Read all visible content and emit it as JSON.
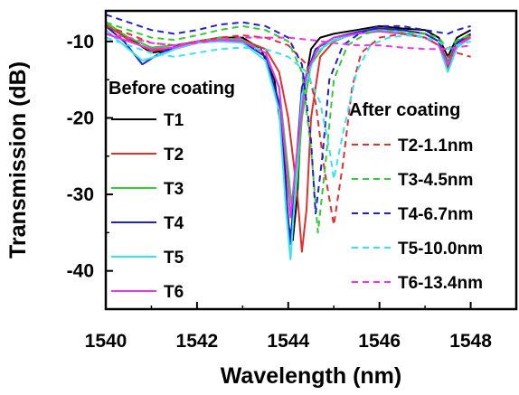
{
  "chart_data": {
    "type": "line",
    "xlabel": "Wavelength (nm)",
    "ylabel": "Transmission (dB)",
    "xlim": [
      1540,
      1549
    ],
    "ylim": [
      -45,
      -6
    ],
    "xticks": [
      1540,
      1542,
      1544,
      1546,
      1548
    ],
    "yticks": [
      -10,
      -20,
      -30,
      -40
    ],
    "legend_groups": [
      {
        "title": "Before coating",
        "placement": "left",
        "entries": [
          "T1",
          "T2",
          "T3",
          "T4",
          "T5",
          "T6"
        ]
      },
      {
        "title": "After coating",
        "placement": "right",
        "entries": [
          "T2-1.1nm",
          "T3-4.5nm",
          "T4-6.7nm",
          "T5-10.0nm",
          "T6-13.4nm"
        ]
      }
    ],
    "series": [
      {
        "name": "T1",
        "group": "before",
        "color": "#000000",
        "style": "solid",
        "x": [
          1540.0,
          1540.5,
          1541.0,
          1541.5,
          1542.0,
          1542.5,
          1543.0,
          1543.4,
          1543.7,
          1543.9,
          1544.0,
          1544.1,
          1544.2,
          1544.3,
          1544.5,
          1544.7,
          1545.0,
          1545.5,
          1546.0,
          1546.5,
          1547.0,
          1547.3,
          1547.5,
          1547.7,
          1548.0
        ],
        "y": [
          -8.0,
          -9.5,
          -11.5,
          -11.0,
          -10.0,
          -9.5,
          -9.5,
          -11.0,
          -15.0,
          -24.0,
          -34.0,
          -36.0,
          -30.0,
          -18.0,
          -11.0,
          -9.5,
          -9.0,
          -8.5,
          -8.0,
          -8.3,
          -8.5,
          -9.5,
          -12.0,
          -9.5,
          -8.5
        ]
      },
      {
        "name": "T2",
        "group": "before",
        "color": "#e03030",
        "style": "solid",
        "x": [
          1540.0,
          1540.5,
          1541.0,
          1541.5,
          1542.0,
          1542.5,
          1543.0,
          1543.5,
          1543.8,
          1544.0,
          1544.2,
          1544.3,
          1544.4,
          1544.5,
          1544.7,
          1545.0,
          1545.5,
          1546.0,
          1546.5,
          1547.0,
          1547.3,
          1547.5,
          1547.7,
          1548.0
        ],
        "y": [
          -7.8,
          -9.8,
          -11.2,
          -11.0,
          -10.2,
          -9.8,
          -9.8,
          -11.0,
          -14.0,
          -20.0,
          -30.0,
          -37.5,
          -32.0,
          -20.0,
          -12.0,
          -10.0,
          -8.8,
          -8.2,
          -8.5,
          -9.0,
          -10.0,
          -13.5,
          -10.5,
          -9.2
        ]
      },
      {
        "name": "T3",
        "group": "before",
        "color": "#33cc33",
        "style": "solid",
        "x": [
          1540.0,
          1540.5,
          1541.0,
          1541.5,
          1542.0,
          1542.5,
          1543.0,
          1543.5,
          1543.8,
          1544.0,
          1544.1,
          1544.2,
          1544.3,
          1544.5,
          1544.8,
          1545.2,
          1545.6,
          1546.0,
          1546.5,
          1547.0,
          1547.3,
          1547.5,
          1547.7,
          1548.0
        ],
        "y": [
          -7.5,
          -9.5,
          -10.8,
          -10.5,
          -10.0,
          -9.5,
          -9.8,
          -11.5,
          -16.0,
          -27.0,
          -33.0,
          -28.0,
          -20.0,
          -13.0,
          -10.5,
          -9.5,
          -8.8,
          -8.5,
          -8.8,
          -9.5,
          -10.5,
          -12.5,
          -10.0,
          -9.0
        ]
      },
      {
        "name": "T4",
        "group": "before",
        "color": "#2020cc",
        "style": "solid",
        "x": [
          1540.0,
          1540.4,
          1540.8,
          1541.2,
          1541.6,
          1542.0,
          1542.5,
          1543.0,
          1543.5,
          1543.8,
          1543.95,
          1544.05,
          1544.15,
          1544.3,
          1544.6,
          1545.0,
          1545.5,
          1546.0,
          1546.5,
          1547.0,
          1547.3,
          1547.5,
          1547.7,
          1548.0
        ],
        "y": [
          -8.0,
          -10.0,
          -13.0,
          -11.5,
          -10.5,
          -10.0,
          -9.8,
          -10.0,
          -12.0,
          -18.0,
          -30.0,
          -36.5,
          -28.0,
          -16.0,
          -11.0,
          -9.5,
          -8.8,
          -8.3,
          -8.5,
          -9.0,
          -10.0,
          -13.0,
          -10.2,
          -9.0
        ]
      },
      {
        "name": "T5",
        "group": "before",
        "color": "#33e6ee",
        "style": "solid",
        "x": [
          1540.0,
          1540.4,
          1540.8,
          1541.2,
          1541.6,
          1542.0,
          1542.5,
          1543.0,
          1543.5,
          1543.8,
          1543.95,
          1544.05,
          1544.15,
          1544.3,
          1544.6,
          1545.0,
          1545.5,
          1546.0,
          1546.5,
          1547.0,
          1547.3,
          1547.5,
          1547.7,
          1548.0
        ],
        "y": [
          -8.5,
          -10.5,
          -12.5,
          -11.8,
          -10.8,
          -10.2,
          -10.0,
          -10.2,
          -12.5,
          -19.0,
          -32.0,
          -38.5,
          -30.0,
          -17.0,
          -11.5,
          -9.8,
          -9.0,
          -8.5,
          -8.8,
          -9.5,
          -10.5,
          -14.0,
          -10.8,
          -9.5
        ]
      },
      {
        "name": "T6",
        "group": "before",
        "color": "#ee33ee",
        "style": "solid",
        "x": [
          1540.0,
          1540.5,
          1541.0,
          1541.5,
          1542.0,
          1542.5,
          1543.0,
          1543.5,
          1543.8,
          1543.95,
          1544.05,
          1544.2,
          1544.4,
          1544.7,
          1545.0,
          1545.5,
          1546.0,
          1546.5,
          1547.0,
          1547.3,
          1547.5,
          1547.7,
          1548.0
        ],
        "y": [
          -9.0,
          -10.0,
          -11.0,
          -10.8,
          -10.0,
          -9.8,
          -10.0,
          -11.5,
          -16.0,
          -26.0,
          -33.0,
          -24.0,
          -14.0,
          -10.5,
          -9.5,
          -9.0,
          -8.7,
          -9.0,
          -9.5,
          -10.5,
          -13.0,
          -10.5,
          -9.5
        ]
      },
      {
        "name": "T2-1.1nm",
        "group": "after",
        "color": "#e03030",
        "style": "dashed",
        "x": [
          1540.0,
          1540.5,
          1541.0,
          1541.5,
          1542.0,
          1542.5,
          1543.0,
          1543.5,
          1544.0,
          1544.4,
          1544.6,
          1544.8,
          1545.0,
          1545.2,
          1545.4,
          1545.6,
          1546.0,
          1546.5,
          1547.0,
          1547.3,
          1547.5,
          1547.7,
          1548.0
        ],
        "y": [
          -8.0,
          -9.0,
          -10.2,
          -10.5,
          -10.0,
          -9.5,
          -9.2,
          -9.5,
          -10.5,
          -13.0,
          -18.0,
          -27.0,
          -34.0,
          -26.0,
          -16.0,
          -11.5,
          -9.5,
          -9.0,
          -9.5,
          -10.5,
          -12.0,
          -11.5,
          -12.0
        ]
      },
      {
        "name": "T3-4.5nm",
        "group": "after",
        "color": "#33cc33",
        "style": "dashed",
        "x": [
          1540.0,
          1540.5,
          1541.0,
          1541.5,
          1542.0,
          1542.5,
          1543.0,
          1543.5,
          1544.0,
          1544.3,
          1544.5,
          1544.65,
          1544.8,
          1545.0,
          1545.3,
          1545.7,
          1546.0,
          1546.5,
          1547.0,
          1547.3,
          1547.5,
          1547.7,
          1548.0
        ],
        "y": [
          -7.5,
          -8.5,
          -9.5,
          -9.8,
          -9.2,
          -8.5,
          -8.0,
          -8.5,
          -10.0,
          -14.0,
          -24.0,
          -35.0,
          -27.0,
          -15.0,
          -10.5,
          -9.0,
          -8.5,
          -8.8,
          -9.0,
          -9.5,
          -11.0,
          -9.8,
          -9.2
        ]
      },
      {
        "name": "T4-6.7nm",
        "group": "after",
        "color": "#2020cc",
        "style": "dashed",
        "x": [
          1540.0,
          1540.5,
          1541.0,
          1541.5,
          1542.0,
          1542.5,
          1543.0,
          1543.5,
          1544.0,
          1544.3,
          1544.5,
          1544.6,
          1544.75,
          1544.9,
          1545.2,
          1545.6,
          1546.0,
          1546.5,
          1547.0,
          1547.3,
          1547.5,
          1547.7,
          1548.0
        ],
        "y": [
          -6.5,
          -7.5,
          -8.5,
          -9.0,
          -8.5,
          -7.8,
          -7.5,
          -8.0,
          -9.5,
          -13.0,
          -23.0,
          -32.5,
          -25.0,
          -15.0,
          -10.5,
          -8.8,
          -8.0,
          -8.0,
          -8.5,
          -8.8,
          -9.0,
          -8.5,
          -8.0
        ]
      },
      {
        "name": "T5-10.0nm",
        "group": "after",
        "color": "#33e6ee",
        "style": "dashed",
        "x": [
          1540.0,
          1540.5,
          1541.0,
          1541.5,
          1542.0,
          1542.5,
          1543.0,
          1543.5,
          1544.0,
          1544.4,
          1544.7,
          1544.9,
          1545.0,
          1545.2,
          1545.5,
          1545.8,
          1546.2,
          1546.6,
          1547.0,
          1547.3,
          1547.5,
          1547.7,
          1548.0
        ],
        "y": [
          -9.5,
          -10.5,
          -11.5,
          -12.0,
          -11.5,
          -11.0,
          -10.8,
          -11.0,
          -12.0,
          -14.0,
          -18.0,
          -24.0,
          -28.0,
          -22.0,
          -14.0,
          -10.5,
          -9.5,
          -9.2,
          -9.5,
          -10.0,
          -11.0,
          -10.5,
          -10.0
        ]
      },
      {
        "name": "T6-13.4nm",
        "group": "after",
        "color": "#ee33ee",
        "style": "dashed",
        "x": [
          1540.0,
          1540.5,
          1541.0,
          1541.5,
          1542.0,
          1542.5,
          1543.0,
          1543.5,
          1544.0,
          1544.5,
          1545.0,
          1545.5,
          1546.0,
          1546.5,
          1547.0,
          1547.3,
          1547.5,
          1547.7,
          1548.0
        ],
        "y": [
          -9.0,
          -9.5,
          -10.2,
          -10.5,
          -10.2,
          -9.8,
          -9.5,
          -9.5,
          -9.5,
          -9.8,
          -10.2,
          -10.5,
          -10.5,
          -10.8,
          -11.0,
          -11.0,
          -11.0,
          -10.8,
          -10.5
        ]
      }
    ]
  }
}
